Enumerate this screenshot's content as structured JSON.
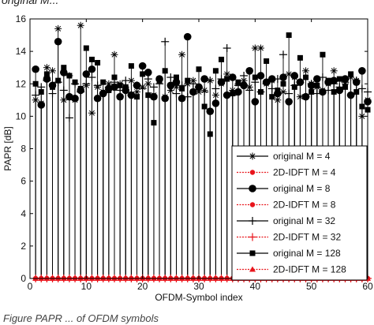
{
  "caption_top": "original M...",
  "caption_bottom": "Figure PAPR ... of OFDM symbols",
  "chart_data": {
    "type": "scatter",
    "xlabel": "OFDM-Symbol index",
    "ylabel": "PAPR [dB]",
    "xlim": [
      0,
      60
    ],
    "ylim": [
      0,
      16
    ],
    "xticks": [
      0,
      10,
      20,
      30,
      40,
      50,
      60
    ],
    "yticks": [
      0,
      2,
      4,
      6,
      8,
      10,
      12,
      14,
      16
    ],
    "grid": false,
    "legend_position": "bottom-right",
    "x": [
      1,
      2,
      3,
      4,
      5,
      6,
      7,
      8,
      9,
      10,
      11,
      12,
      13,
      14,
      15,
      16,
      17,
      18,
      19,
      20,
      21,
      22,
      23,
      24,
      25,
      26,
      27,
      28,
      29,
      30,
      31,
      32,
      33,
      34,
      35,
      36,
      37,
      38,
      39,
      40,
      41,
      42,
      43,
      44,
      45,
      46,
      47,
      48,
      49,
      50,
      51,
      52,
      53,
      54,
      55,
      56,
      57,
      58,
      59,
      60
    ],
    "series": [
      {
        "name": "original M = 4",
        "marker": "asterisk",
        "color": "#000000",
        "values": [
          11.0,
          10.8,
          13.0,
          12.8,
          15.4,
          11.0,
          12.5,
          11.0,
          15.6,
          11.9,
          10.2,
          11.8,
          11.5,
          12.0,
          13.8,
          12.0,
          11.8,
          12.2,
          11.5,
          11.8,
          12.0,
          11.3,
          12.2,
          11.2,
          11.6,
          11.8,
          13.8,
          12.0,
          12.2,
          11.5,
          11.6,
          12.2,
          11.3,
          12.0,
          12.6,
          11.6,
          12.0,
          12.2,
          11.8,
          14.2,
          14.2,
          12.0,
          12.2,
          11.0,
          11.5,
          12.6,
          12.4,
          11.2,
          12.8,
          12.0,
          11.8,
          11.6,
          12.0,
          12.8,
          11.6,
          12.0,
          12.4,
          12.2,
          10.0,
          11.0
        ]
      },
      {
        "name": "2D-IDFT M = 4",
        "marker": "dot",
        "color": "#e8141b",
        "values": [
          0,
          0,
          0,
          0,
          0,
          0,
          0,
          0,
          0,
          0,
          0,
          0,
          0,
          0,
          0,
          0,
          0,
          0,
          0,
          0,
          0,
          0,
          0,
          0,
          0,
          0,
          0,
          0,
          0,
          0,
          0,
          0,
          0,
          0,
          0,
          0,
          0,
          0,
          0,
          0,
          0,
          0,
          0,
          0,
          0,
          0,
          0,
          0,
          0,
          0,
          0,
          0,
          0,
          0,
          0,
          0,
          0,
          0,
          0,
          0
        ]
      },
      {
        "name": "original M = 8",
        "marker": "circle",
        "color": "#000000",
        "values": [
          12.9,
          10.7,
          12.3,
          11.9,
          14.6,
          12.7,
          11.2,
          11.1,
          11.6,
          12.6,
          12.9,
          11.1,
          11.4,
          11.7,
          11.8,
          11.2,
          11.6,
          11.3,
          11.9,
          13.1,
          12.7,
          11.2,
          12.3,
          11.1,
          11.9,
          12.1,
          11.1,
          14.9,
          11.5,
          11.8,
          12.3,
          10.3,
          10.8,
          12.1,
          11.3,
          12.4,
          11.5,
          11.9,
          12.8,
          10.9,
          12.5,
          12.1,
          12.3,
          11.4,
          12.4,
          10.9,
          12.5,
          12.1,
          11.2,
          11.9,
          12.3,
          11.5,
          12.1,
          12.2,
          11.6,
          12.3,
          11.3,
          12.1,
          12.8,
          10.9
        ]
      },
      {
        "name": "2D-IDFT M = 8",
        "marker": "dot",
        "color": "#e8141b",
        "values": [
          0,
          0,
          0,
          0,
          0,
          0,
          0,
          0,
          0,
          0,
          0,
          0,
          0,
          0,
          0,
          0,
          0,
          0,
          0,
          0,
          0,
          0,
          0,
          0,
          0,
          0,
          0,
          0,
          0,
          0,
          0,
          0,
          0,
          0,
          0,
          0,
          0,
          0,
          0,
          0,
          0,
          0,
          0,
          0,
          0,
          0,
          0,
          0,
          0,
          0,
          0,
          0,
          0,
          0,
          0,
          0,
          0,
          0,
          0,
          0
        ]
      },
      {
        "name": "original M = 32",
        "marker": "plus",
        "color": "#000000",
        "values": [
          11.3,
          11.8,
          12.2,
          11.4,
          12.1,
          11.6,
          9.9,
          12.0,
          11.5,
          12.0,
          12.4,
          11.9,
          11.4,
          11.8,
          12.1,
          11.6,
          12.2,
          11.3,
          11.9,
          11.7,
          12.3,
          11.8,
          12.0,
          14.6,
          12.4,
          11.4,
          11.9,
          11.2,
          12.0,
          11.8,
          11.5,
          12.2,
          11.7,
          12.3,
          14.2,
          11.3,
          11.9,
          12.5,
          11.6,
          12.1,
          11.5,
          12.0,
          11.7,
          12.3,
          13.8,
          11.4,
          11.9,
          12.1,
          11.2,
          12.0,
          11.4,
          12.4,
          11.6,
          12.0,
          11.8,
          12.1,
          11.3,
          12.2,
          11.7,
          11.5
        ]
      },
      {
        "name": "2D-IDFT M = 32",
        "marker": "plus",
        "color": "#e8141b",
        "values": [
          0,
          0,
          0,
          0,
          0,
          0,
          0,
          0,
          0,
          0,
          0,
          0,
          0,
          0,
          0,
          0,
          0,
          0,
          0,
          0,
          0,
          0,
          0,
          0,
          0,
          0,
          0,
          0,
          0,
          0,
          0,
          0,
          0,
          0,
          0,
          0,
          0,
          0,
          0,
          0,
          0,
          0,
          0,
          0,
          0,
          0,
          0,
          0,
          0,
          0,
          0,
          0,
          0,
          0,
          0,
          0,
          0,
          0,
          0,
          0
        ]
      },
      {
        "name": "original M = 128",
        "marker": "square",
        "color": "#000000",
        "values": [
          12.0,
          11.5,
          12.6,
          11.8,
          12.2,
          13.0,
          12.5,
          12.1,
          11.7,
          14.2,
          13.5,
          13.3,
          12.1,
          11.6,
          12.4,
          11.9,
          11.8,
          13.1,
          11.2,
          12.6,
          11.3,
          9.6,
          12.2,
          12.8,
          11.9,
          12.4,
          11.7,
          12.2,
          11.5,
          12.9,
          10.6,
          8.9,
          12.8,
          13.5,
          12.3,
          11.4,
          12.1,
          11.9,
          12.8,
          12.4,
          11.5,
          13.4,
          11.2,
          11.6,
          12.0,
          15.0,
          11.8,
          13.6,
          12.4,
          11.5,
          11.9,
          13.8,
          12.2,
          11.5,
          12.3,
          11.8,
          12.6,
          11.5,
          10.6,
          10.4
        ]
      },
      {
        "name": "2D-IDFT M = 128",
        "marker": "triangle",
        "color": "#e8141b",
        "values": [
          0,
          0,
          0,
          0,
          0,
          0,
          0,
          0,
          0,
          0,
          0,
          0,
          0,
          0,
          0,
          0,
          0,
          0,
          0,
          0,
          0,
          0,
          0,
          0,
          0,
          0,
          0,
          0,
          0,
          0,
          0,
          0,
          0,
          0,
          0,
          0,
          0,
          0,
          0,
          0,
          0,
          0,
          0,
          0,
          0,
          0,
          0,
          0,
          0,
          0,
          0,
          0,
          0,
          0,
          0,
          0,
          0,
          0,
          0,
          0
        ]
      }
    ]
  }
}
